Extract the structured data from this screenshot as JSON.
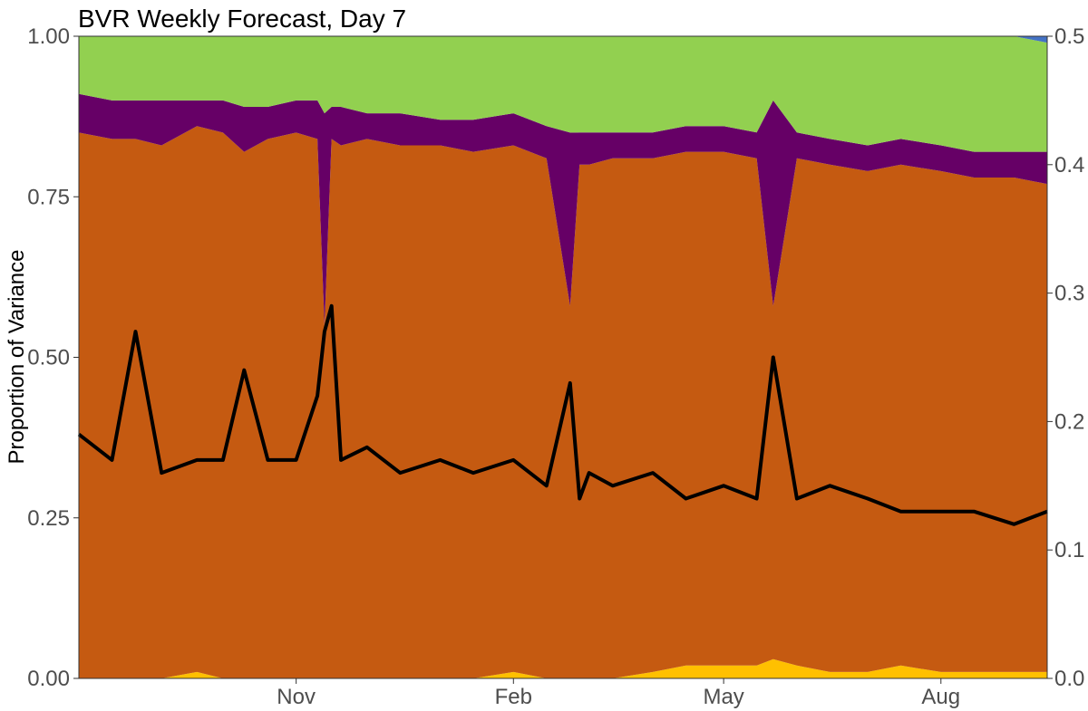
{
  "chart_data": {
    "type": "area",
    "title": "BVR Weekly Forecast, Day 7",
    "xlabel": "",
    "ylabel": "Proportion of Variance",
    "y2label": "",
    "ylim": [
      0,
      1
    ],
    "y2lim": [
      0,
      0.5
    ],
    "x_ticks": [
      "Nov",
      "Feb",
      "May",
      "Aug"
    ],
    "x_tick_dates": [
      "2020-11-01",
      "2021-02-01",
      "2021-05-01",
      "2021-08-01"
    ],
    "x_range": [
      "2020-08-01",
      "2021-09-15"
    ],
    "y_ticks": [
      "0.00",
      "0.25",
      "0.50",
      "0.75",
      "1.00"
    ],
    "y2_ticks": [
      "0.0",
      "0.1",
      "0.2",
      "0.3",
      "0.4",
      "0.5"
    ],
    "grid": false,
    "stack_colors": {
      "bottom": "#FFC000",
      "second": "#C55A11",
      "third": "#660066",
      "fourth": "#92D050",
      "top": "#4472C4"
    },
    "line_color": "#000000",
    "x": [
      "2020-08-01",
      "2020-08-15",
      "2020-08-25",
      "2020-09-05",
      "2020-09-20",
      "2020-10-01",
      "2020-10-10",
      "2020-10-20",
      "2020-11-01",
      "2020-11-10",
      "2020-11-13",
      "2020-11-16",
      "2020-11-20",
      "2020-12-01",
      "2020-12-15",
      "2021-01-01",
      "2021-01-15",
      "2021-02-01",
      "2021-02-15",
      "2021-02-25",
      "2021-03-01",
      "2021-03-05",
      "2021-03-15",
      "2021-04-01",
      "2021-04-15",
      "2021-05-01",
      "2021-05-15",
      "2021-05-22",
      "2021-06-01",
      "2021-06-15",
      "2021-07-01",
      "2021-07-15",
      "2021-08-01",
      "2021-08-15",
      "2021-09-01",
      "2021-09-15"
    ],
    "series": [
      {
        "values": [
          0.0,
          0.0,
          0.0,
          0.0,
          0.01,
          0.0,
          0.0,
          0.0,
          0.0,
          0.0,
          0.0,
          0.0,
          0.0,
          0.0,
          0.0,
          0.0,
          0.0,
          0.01,
          0.0,
          0.0,
          0.0,
          0.0,
          0.0,
          0.01,
          0.02,
          0.02,
          0.02,
          0.03,
          0.02,
          0.01,
          0.01,
          0.02,
          0.01,
          0.01,
          0.01,
          0.01
        ]
      },
      {
        "values": [
          0.85,
          0.84,
          0.84,
          0.83,
          0.85,
          0.85,
          0.82,
          0.84,
          0.85,
          0.84,
          0.55,
          0.84,
          0.83,
          0.84,
          0.83,
          0.83,
          0.82,
          0.82,
          0.81,
          0.58,
          0.8,
          0.8,
          0.81,
          0.8,
          0.8,
          0.8,
          0.79,
          0.55,
          0.79,
          0.79,
          0.78,
          0.78,
          0.78,
          0.77,
          0.77,
          0.76
        ]
      },
      {
        "values": [
          0.06,
          0.06,
          0.06,
          0.07,
          0.04,
          0.05,
          0.07,
          0.05,
          0.05,
          0.06,
          0.33,
          0.05,
          0.06,
          0.04,
          0.05,
          0.04,
          0.05,
          0.05,
          0.05,
          0.27,
          0.05,
          0.05,
          0.04,
          0.04,
          0.04,
          0.04,
          0.04,
          0.32,
          0.04,
          0.04,
          0.04,
          0.04,
          0.04,
          0.04,
          0.04,
          0.05
        ]
      },
      {
        "values": [
          0.09,
          0.1,
          0.1,
          0.1,
          0.1,
          0.1,
          0.11,
          0.11,
          0.1,
          0.1,
          0.12,
          0.11,
          0.11,
          0.12,
          0.12,
          0.13,
          0.13,
          0.12,
          0.14,
          0.15,
          0.15,
          0.15,
          0.15,
          0.15,
          0.14,
          0.14,
          0.15,
          0.1,
          0.15,
          0.16,
          0.17,
          0.16,
          0.17,
          0.18,
          0.18,
          0.17
        ]
      },
      {
        "values": [
          0.0,
          0.0,
          0.0,
          0.0,
          0.0,
          0.0,
          0.0,
          0.0,
          0.0,
          0.0,
          0.0,
          0.0,
          0.0,
          0.0,
          0.0,
          0.0,
          0.0,
          0.0,
          0.0,
          0.0,
          0.0,
          0.0,
          0.0,
          0.0,
          0.0,
          0.0,
          0.0,
          0.0,
          0.0,
          0.0,
          0.0,
          0.0,
          0.0,
          0.0,
          0.0,
          0.01
        ]
      }
    ],
    "line_series": {
      "axis": "right",
      "values": [
        0.19,
        0.17,
        0.27,
        0.16,
        0.17,
        0.17,
        0.24,
        0.17,
        0.17,
        0.22,
        0.27,
        0.29,
        0.17,
        0.18,
        0.16,
        0.17,
        0.16,
        0.17,
        0.15,
        0.23,
        0.14,
        0.16,
        0.15,
        0.16,
        0.14,
        0.15,
        0.14,
        0.25,
        0.14,
        0.15,
        0.14,
        0.13,
        0.13,
        0.13,
        0.12,
        0.13
      ]
    }
  }
}
